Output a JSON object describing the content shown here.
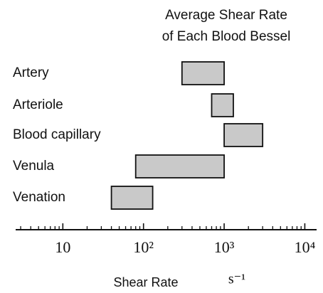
{
  "chart_data": {
    "type": "range-bar",
    "title": [
      "Average Shear Rate",
      "of Each Blood Bessel"
    ],
    "categories": [
      "Artery",
      "Arteriole",
      "Blood capillary",
      "Venula",
      "Venation"
    ],
    "values": [
      [
        300,
        1000
      ],
      [
        700,
        1300
      ],
      [
        1000,
        3000
      ],
      [
        80,
        1000
      ],
      [
        40,
        130
      ]
    ],
    "color": "#c9c9c9",
    "xlabel": "Shear Rate",
    "xunit": "s⁻¹",
    "xscale": "log",
    "xlim": [
      2.6,
      14000
    ],
    "xticks": [
      10,
      {
        "value": 100,
        "label": "10²"
      },
      {
        "value": 1000,
        "label": "10³"
      },
      {
        "value": 10000,
        "label": "10⁴"
      }
    ],
    "xminorticks": [
      3,
      4,
      5,
      6,
      7,
      8,
      9,
      20,
      30,
      40,
      50,
      60,
      70,
      80,
      90,
      200,
      300,
      400,
      500,
      600,
      700,
      800,
      900,
      2000,
      3000,
      4000,
      5000,
      6000,
      7000,
      8000,
      9000
    ]
  }
}
